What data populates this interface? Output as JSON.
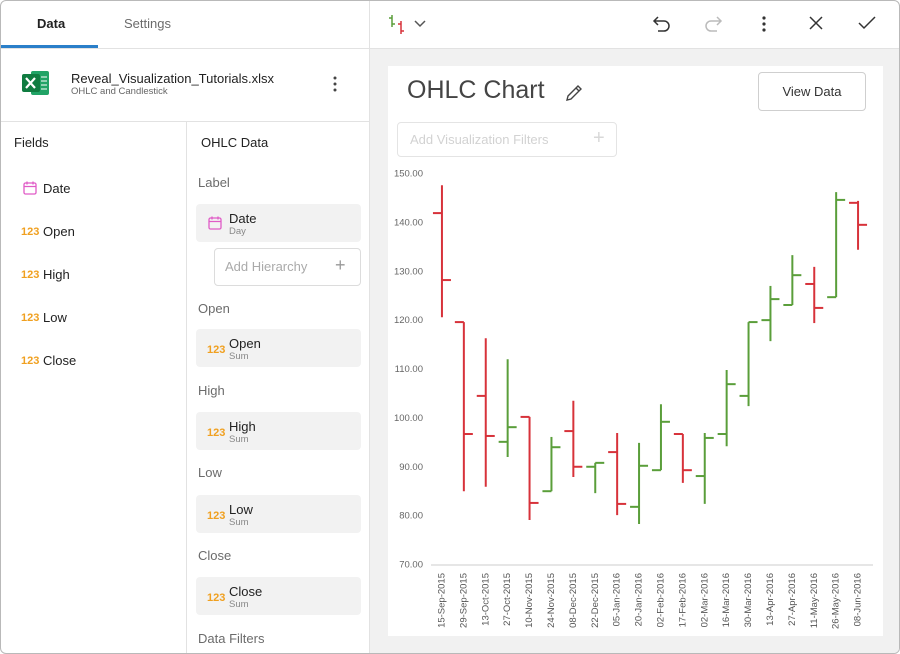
{
  "tabs": [
    "Data",
    "Settings"
  ],
  "data_source": {
    "file": "Reveal_Visualization_Tutorials.xlsx",
    "sheet": "OHLC and Candlestick"
  },
  "fields": {
    "title": "Fields",
    "items": [
      {
        "label": "Date"
      },
      {
        "badge": "123",
        "label": "Open"
      },
      {
        "badge": "123",
        "label": "High"
      },
      {
        "badge": "123",
        "label": "Low"
      },
      {
        "badge": "123",
        "label": "Close"
      }
    ]
  },
  "panel": {
    "title": "OHLC Data",
    "sections": [
      {
        "title": "Label",
        "field": {
          "label": "Date",
          "sub": "Day"
        },
        "add": "Add Hierarchy"
      },
      {
        "title": "Open",
        "field": {
          "badge": "123",
          "label": "Open",
          "sub": "Sum"
        }
      },
      {
        "title": "High",
        "field": {
          "badge": "123",
          "label": "High",
          "sub": "Sum"
        }
      },
      {
        "title": "Low",
        "field": {
          "badge": "123",
          "label": "Low",
          "sub": "Sum"
        }
      },
      {
        "title": "Close",
        "field": {
          "badge": "123",
          "label": "Close",
          "sub": "Sum"
        }
      }
    ],
    "data_filters": "Data Filters"
  },
  "toolbar": {
    "view_data": "View Data",
    "filters_placeholder": "Add Visualization Filters"
  },
  "chart_data": {
    "type": "ohlc",
    "title": "OHLC Chart",
    "categories": [
      "15-Sep-2015",
      "29-Sep-2015",
      "13-Oct-2015",
      "27-Oct-2015",
      "10-Nov-2015",
      "24-Nov-2015",
      "08-Dec-2015",
      "22-Dec-2015",
      "05-Jan-2016",
      "20-Jan-2016",
      "02-Feb-2016",
      "17-Feb-2016",
      "02-Mar-2016",
      "16-Mar-2016",
      "30-Mar-2016",
      "13-Apr-2016",
      "27-Apr-2016",
      "11-May-2016",
      "26-May-2016",
      "08-Jun-2016"
    ],
    "open": [
      142.0,
      119.7,
      104.6,
      95.2,
      100.3,
      85.1,
      97.4,
      90.1,
      93.1,
      81.9,
      89.4,
      96.8,
      88.2,
      96.8,
      104.6,
      120.1,
      123.2,
      127.5,
      124.8,
      144.1
    ],
    "high": [
      147.7,
      119.7,
      116.4,
      112.1,
      100.3,
      96.2,
      103.6,
      90.9,
      97.0,
      95.0,
      102.9,
      96.8,
      97.0,
      109.9,
      119.7,
      127.1,
      133.4,
      131.0,
      146.3,
      144.5
    ],
    "low": [
      120.7,
      85.1,
      86.0,
      92.1,
      79.2,
      85.1,
      88.0,
      84.7,
      80.2,
      78.4,
      89.4,
      86.8,
      82.5,
      94.3,
      102.5,
      115.8,
      123.2,
      119.5,
      124.8,
      134.5
    ],
    "close": [
      128.3,
      96.8,
      96.4,
      98.2,
      82.7,
      94.1,
      90.1,
      90.9,
      82.5,
      90.3,
      99.3,
      89.4,
      96.0,
      107.0,
      119.7,
      124.4,
      129.3,
      122.6,
      144.7,
      139.6
    ],
    "up_color": "#5a9e3a",
    "down_color": "#d7323a",
    "ylim": [
      70,
      150
    ],
    "yticks": [
      {
        "value": 70,
        "label": "70.00"
      },
      {
        "value": 80,
        "label": "80.00"
      },
      {
        "value": 90,
        "label": "90.00"
      },
      {
        "value": 100,
        "label": "100.00"
      },
      {
        "value": 110,
        "label": "110.00"
      },
      {
        "value": 120,
        "label": "120.00"
      },
      {
        "value": 130,
        "label": "130.00"
      },
      {
        "value": 140,
        "label": "140.00"
      },
      {
        "value": 150,
        "label": "150.00"
      }
    ]
  }
}
